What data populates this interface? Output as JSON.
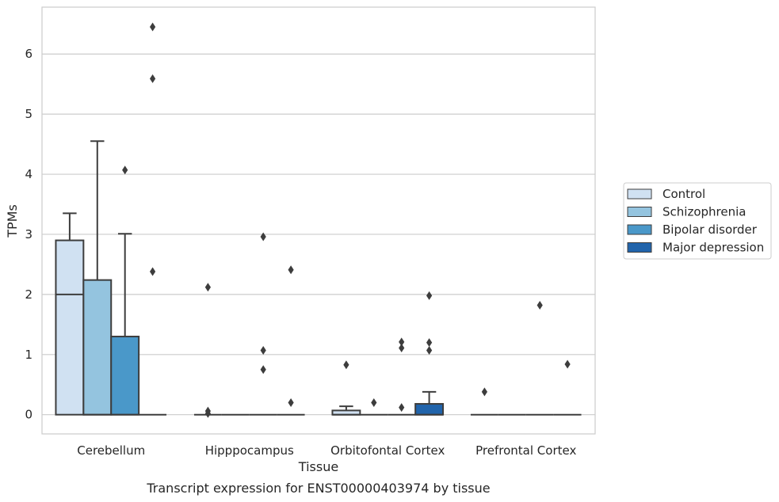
{
  "caption": "Transcript expression for ENST00000403974 by tissue",
  "chart_data": {
    "type": "box",
    "xlabel": "Tissue",
    "ylabel": "TPMs",
    "ylim": [
      -0.32,
      6.78
    ],
    "yticks": [
      0,
      1,
      2,
      3,
      4,
      5,
      6
    ],
    "grid": "horizontal",
    "legend_position": "right",
    "categories": [
      "Cerebellum",
      "Hipppocampus",
      "Orbitofontal Cortex",
      "Prefrontal Cortex"
    ],
    "series": [
      {
        "name": "Control",
        "color": "#d0e1f2",
        "boxes": [
          {
            "q1": 0,
            "median": 2.0,
            "q3": 2.9,
            "whisker_low": 0,
            "whisker_high": 3.35,
            "outliers": []
          },
          {
            "q1": 0,
            "median": 0,
            "q3": 0,
            "whisker_low": 0,
            "whisker_high": 0,
            "outliers": [
              0.02,
              0.06,
              2.12
            ]
          },
          {
            "q1": 0,
            "median": 0,
            "q3": 0.07,
            "whisker_low": 0,
            "whisker_high": 0.14,
            "outliers": [
              0.83
            ]
          },
          {
            "q1": 0,
            "median": 0,
            "q3": 0,
            "whisker_low": 0,
            "whisker_high": 0,
            "outliers": [
              0.38
            ]
          }
        ]
      },
      {
        "name": "Schizophrenia",
        "color": "#94c4df",
        "boxes": [
          {
            "q1": 0,
            "median": 0,
            "q3": 2.24,
            "whisker_low": 0,
            "whisker_high": 4.55,
            "outliers": []
          },
          {
            "q1": 0,
            "median": 0,
            "q3": 0,
            "whisker_low": 0,
            "whisker_high": 0,
            "outliers": []
          },
          {
            "q1": 0,
            "median": 0,
            "q3": 0,
            "whisker_low": 0,
            "whisker_high": 0,
            "outliers": [
              0.2
            ]
          },
          {
            "q1": 0,
            "median": 0,
            "q3": 0,
            "whisker_low": 0,
            "whisker_high": 0,
            "outliers": []
          }
        ]
      },
      {
        "name": "Bipolar disorder",
        "color": "#4a98c9",
        "boxes": [
          {
            "q1": 0,
            "median": 0,
            "q3": 1.3,
            "whisker_low": 0,
            "whisker_high": 3.01,
            "outliers": [
              4.07
            ]
          },
          {
            "q1": 0,
            "median": 0,
            "q3": 0,
            "whisker_low": 0,
            "whisker_high": 0,
            "outliers": [
              0.75,
              1.07,
              2.96
            ]
          },
          {
            "q1": 0,
            "median": 0,
            "q3": 0,
            "whisker_low": 0,
            "whisker_high": 0,
            "outliers": [
              0.12,
              1.11,
              1.21
            ]
          },
          {
            "q1": 0,
            "median": 0,
            "q3": 0,
            "whisker_low": 0,
            "whisker_high": 0,
            "outliers": [
              1.82
            ]
          }
        ]
      },
      {
        "name": "Major depression",
        "color": "#2164ab",
        "boxes": [
          {
            "q1": 0,
            "median": 0,
            "q3": 0,
            "whisker_low": 0,
            "whisker_high": 0,
            "outliers": [
              2.38,
              5.59,
              6.45
            ]
          },
          {
            "q1": 0,
            "median": 0,
            "q3": 0,
            "whisker_low": 0,
            "whisker_high": 0,
            "outliers": [
              0.2,
              2.41
            ]
          },
          {
            "q1": 0,
            "median": 0,
            "q3": 0.18,
            "whisker_low": 0,
            "whisker_high": 0.38,
            "outliers": [
              1.07,
              1.2,
              1.98
            ]
          },
          {
            "q1": 0,
            "median": 0,
            "q3": 0,
            "whisker_low": 0,
            "whisker_high": 0,
            "outliers": [
              0.84
            ]
          }
        ]
      }
    ]
  }
}
